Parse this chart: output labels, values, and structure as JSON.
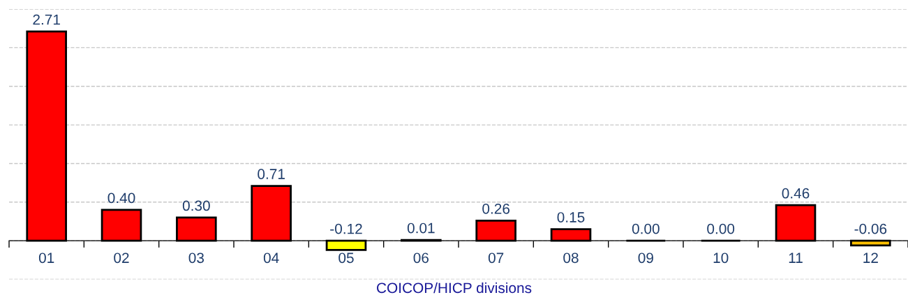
{
  "chart_data": {
    "type": "bar",
    "xlabel": "COICOP/HICP divisions",
    "categories": [
      "01",
      "02",
      "03",
      "04",
      "05",
      "06",
      "07",
      "08",
      "09",
      "10",
      "11",
      "12"
    ],
    "values": [
      2.71,
      0.4,
      0.3,
      0.71,
      -0.12,
      0.01,
      0.26,
      0.15,
      0.0,
      0.0,
      0.46,
      -0.06
    ],
    "colors": [
      "#ff0000",
      "#ff0000",
      "#ff0000",
      "#ff0000",
      "#ffff00",
      "#ff0000",
      "#ff0000",
      "#ff0000",
      "#000000",
      "#000000",
      "#ff0000",
      "#ffc000"
    ],
    "value_labels": [
      "2.71",
      "0.40",
      "0.30",
      "0.71",
      "-0.12",
      "0.01",
      "0.26",
      "0.15",
      "0.00",
      "0.00",
      "0.46",
      "-0.06"
    ],
    "ylim": [
      -0.5,
      3.0
    ],
    "yticks": [
      {
        "value": -0.5,
        "label": null
      },
      {
        "value": 0,
        "label": null
      },
      {
        "value": 0.5,
        "label": null
      },
      {
        "value": 1.0,
        "label": null
      },
      {
        "value": 1.5,
        "label": null
      },
      {
        "value": 2.0,
        "label": null
      },
      {
        "value": 2.5,
        "label": null
      },
      {
        "value": 3.0,
        "label": null
      }
    ],
    "grid": "y",
    "tick_labels": "x"
  }
}
